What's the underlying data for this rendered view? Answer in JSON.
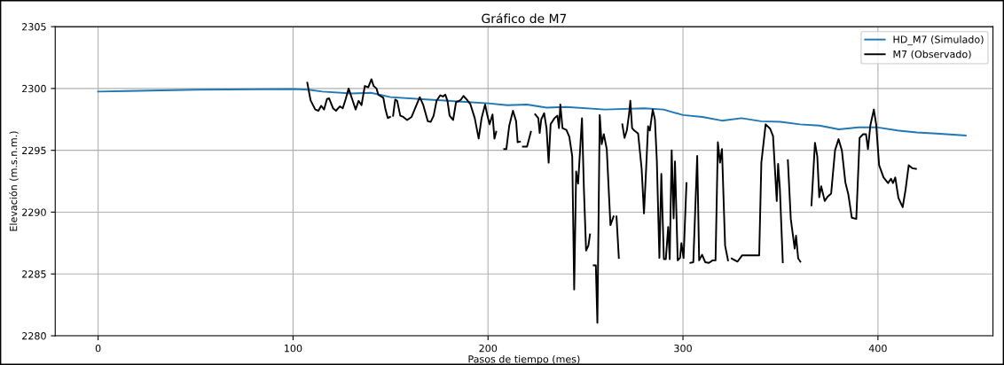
{
  "chart_data": {
    "type": "line",
    "title": "Gráfico de M7",
    "xlabel": "Pasos de tiempo (mes)",
    "ylabel": "Elevación (m.s.n.m.)",
    "xlim": [
      -22,
      459
    ],
    "xticks": [
      0,
      100,
      200,
      300,
      400
    ],
    "ylim": [
      2280,
      2305
    ],
    "yticks": [
      2280,
      2285,
      2290,
      2295,
      2300,
      2305
    ],
    "grid": true,
    "legend": "top right",
    "line_style": "solid",
    "marker": "none",
    "series": [
      {
        "name": "HD_M7 (Simulado)",
        "color": "#1f77b4",
        "x": [
          0,
          15,
          50,
          100,
          108,
          115,
          130,
          140,
          150,
          170,
          190,
          200,
          210,
          220,
          230,
          240,
          260,
          280,
          290,
          300,
          310,
          320,
          330,
          340,
          350,
          360,
          370,
          380,
          390,
          400,
          410,
          420,
          430,
          445
        ],
        "values": [
          2299.75,
          2299.8,
          2299.9,
          2299.95,
          2299.9,
          2299.75,
          2299.6,
          2299.65,
          2299.3,
          2299.1,
          2298.9,
          2298.8,
          2298.65,
          2298.7,
          2298.45,
          2298.5,
          2298.3,
          2298.4,
          2298.3,
          2297.85,
          2297.7,
          2297.4,
          2297.6,
          2297.35,
          2297.3,
          2297.1,
          2297.0,
          2296.7,
          2296.85,
          2296.85,
          2296.6,
          2296.45,
          2296.35,
          2296.2
        ]
      },
      {
        "name": "M7 (Observado)",
        "color": "#000000",
        "x": [
          107.3,
          109,
          111.4,
          113,
          114.4,
          115.9,
          117.4,
          118.5,
          120.5,
          122,
          124,
          125.5,
          127,
          128.5,
          130.3,
          132.1,
          133.6,
          135.1,
          136.8,
          138.6,
          140.2,
          141.3,
          142.8,
          143.7,
          146.3,
          147.4,
          148.6,
          149.8,
          150.5,
          151.3,
          152.4,
          153.4,
          155,
          156.5,
          158.5,
          160.8,
          163,
          165,
          166.8,
          169.1,
          170.6,
          172.1,
          173.6,
          175.5,
          176.9,
          178.1,
          179.2,
          180.3,
          182.1,
          183.6,
          185.2,
          186.1,
          187.4,
          189.1,
          190.9,
          193.2,
          195.2,
          196.7,
          198.5,
          199.7,
          200.8,
          202.3,
          203.3,
          204.2,
          206,
          208.3,
          209.4,
          210.9,
          212.8,
          214.4,
          215.2,
          216.4,
          217.2,
          217.9,
          220,
          222,
          223,
          224.2,
          225.8,
          226.5,
          227.3,
          228.8,
          230,
          231.1,
          232.1,
          234.1,
          235.6,
          236.4,
          237.1,
          238.2,
          240.2,
          241.7,
          243.2,
          244.2,
          245.2,
          246.2,
          248.2,
          249.2,
          250.3,
          251.5,
          252.3,
          253.2,
          254.2,
          255.3,
          256.1,
          257.3,
          258.3,
          259.4,
          260.9,
          262.8,
          264.4,
          265.2,
          265.9,
          267.1,
          268,
          268.9,
          270,
          271.2,
          272.4,
          273,
          273.9,
          275,
          277,
          278.8,
          280,
          281.1,
          282.1,
          283,
          284.5,
          285.6,
          286.6,
          287.9,
          288.9,
          290.2,
          291.2,
          292.4,
          293.2,
          294.2,
          295.2,
          295.9,
          297.3,
          298.5,
          299.2,
          300.3,
          301.8,
          302.8,
          303.8,
          305.3,
          307.3,
          308.3,
          309.8,
          311.4,
          313.3,
          315.2,
          316.7,
          317.9,
          319,
          320,
          321.6,
          323.1,
          324,
          325,
          328,
          330.3,
          339.1,
          340.2,
          342.4,
          344.7,
          346.2,
          348.1,
          348.8,
          349.7,
          351.2,
          352.5,
          353.8,
          355.3,
          357.3,
          358,
          359.1,
          360.2,
          363,
          365.9,
          367.7,
          368.9,
          369.9,
          370.9,
          372.7,
          374.2,
          376,
          378,
          379.8,
          381.5,
          383.3,
          384.8,
          386.6,
          388.9,
          390.6,
          392.4,
          393.9,
          394.9,
          396.1,
          397.9,
          399.1,
          400.6,
          402.9,
          405.2,
          406.7,
          407.7,
          408.9,
          410.5,
          412.7,
          414.2,
          415.8,
          417.7,
          419.5
        ],
        "values": [
          2300.47,
          2299.03,
          2298.3,
          2298.2,
          2298.6,
          2298.3,
          2299.15,
          2299.2,
          2298.4,
          2298.2,
          2298.55,
          2298.4,
          2299.15,
          2300.0,
          2299.15,
          2298.3,
          2299.0,
          2298.65,
          2300.2,
          2300.1,
          2300.75,
          2300.2,
          2300.0,
          2299.5,
          2299.25,
          2298.3,
          2297.6,
          2297.7,
          null,
          2297.8,
          2299.1,
          2299.0,
          2297.8,
          2297.7,
          2297.45,
          2297.7,
          2298.55,
          2299.3,
          2298.65,
          2297.35,
          2297.3,
          2297.8,
          2299.0,
          2299.45,
          2299.35,
          2299.5,
          2299.0,
          2297.8,
          2297.45,
          2298.9,
          2299.0,
          2299.1,
          2299.4,
          2299.1,
          2298.75,
          2297.6,
          2295.95,
          2297.6,
          2298.7,
          2297.8,
          2297.1,
          2297.9,
          2295.95,
          2296.5,
          null,
          2295.1,
          2295.1,
          2297.0,
          2298.2,
          2297.35,
          2295.65,
          2295.7,
          null,
          2295.3,
          2295.3,
          2296.5,
          null,
          2297.9,
          2297.6,
          2296.4,
          2297.5,
          2298.0,
          2296.8,
          2294.0,
          2297.1,
          2297.6,
          2297.8,
          2296.8,
          2298.7,
          2296.8,
          2296.65,
          2296.1,
          2294.5,
          2283.75,
          2293.3,
          2292.3,
          2297.6,
          2291.8,
          2286.9,
          2287.3,
          2288.2,
          null,
          2285.7,
          2285.7,
          2281.05,
          2297.85,
          2295.5,
          2296.3,
          2295.1,
          2288.95,
          2289.65,
          null,
          2289.65,
          2286.3,
          null,
          2297.1,
          2296.0,
          2296.6,
          2298.0,
          2299.0,
          2296.8,
          2296.6,
          2296.35,
          2293.5,
          2289.9,
          2293.5,
          2296.95,
          2296.6,
          2298.3,
          2297.5,
          2294.15,
          2286.3,
          2293.1,
          2286.2,
          2286.2,
          2288.8,
          2286.2,
          2295.0,
          2289.5,
          2294.1,
          2286.1,
          2286.3,
          2287.5,
          2286.3,
          2292.35,
          null,
          2285.9,
          2285.95,
          2294.55,
          2286.1,
          2286.55,
          2285.95,
          2285.9,
          2286.1,
          2286.1,
          2295.65,
          2294.0,
          2295.1,
          2287.3,
          2286.1,
          null,
          2286.25,
          2286.0,
          2286.5,
          2286.5,
          2294.0,
          2297.1,
          2296.75,
          2296.15,
          2290.9,
          2293.9,
          2291.9,
          2285.95,
          null,
          2294.2,
          2289.45,
          2287.05,
          2288.1,
          2286.25,
          2286.0,
          null,
          2290.55,
          2295.6,
          2294.5,
          2291.2,
          2292.1,
          2290.9,
          2291.25,
          2291.5,
          2295.0,
          2295.9,
          2295.0,
          2292.4,
          2291.45,
          2289.55,
          2289.45,
          2296.0,
          2296.3,
          2296.3,
          2295.1,
          2297.0,
          2298.3,
          2297.1,
          2293.8,
          2292.8,
          2292.35,
          2292.7,
          2292.35,
          2292.8,
          2291.15,
          2290.4,
          2291.85,
          2293.8,
          2293.55,
          2293.5
        ]
      }
    ]
  }
}
